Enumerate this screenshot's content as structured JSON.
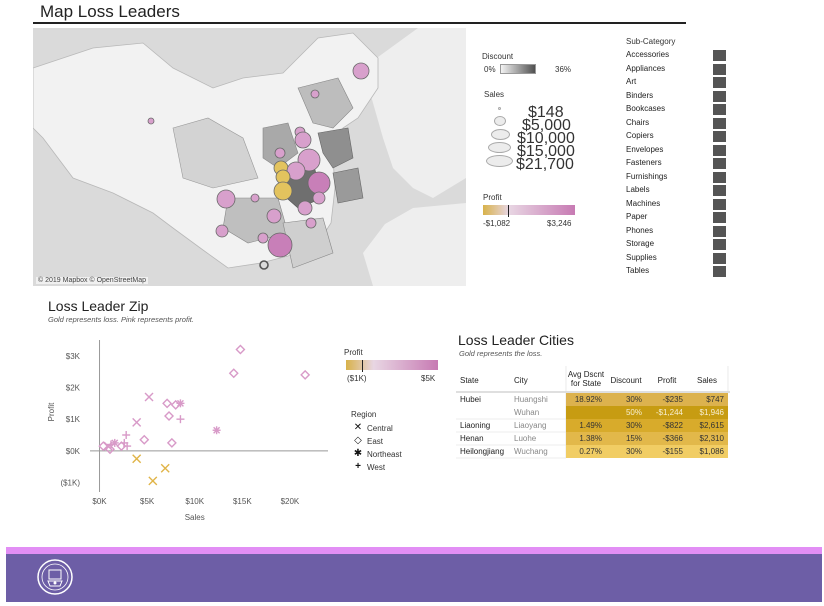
{
  "title": "Map Loss Leaders",
  "map": {
    "credit": "© 2019 Mapbox © OpenStreetMap"
  },
  "discount_legend": {
    "title": "Discount",
    "min": "0%",
    "max": "36%"
  },
  "sales_legend": {
    "title": "Sales",
    "entries": [
      "$148",
      "$5,000",
      "$10,000",
      "$15,000",
      "$21,700"
    ]
  },
  "profit_legend": {
    "title": "Profit",
    "min": "-$1,082",
    "max": "$3,246"
  },
  "subcategory": {
    "title": "Sub-Category",
    "items": [
      "Accessories",
      "Appliances",
      "Art",
      "Binders",
      "Bookcases",
      "Chairs",
      "Copiers",
      "Envelopes",
      "Fasteners",
      "Furnishings",
      "Labels",
      "Machines",
      "Paper",
      "Phones",
      "Storage",
      "Supplies",
      "Tables"
    ]
  },
  "zip": {
    "title": "Loss Leader Zip",
    "subtitle": "Gold represents loss.  Pink represents profit."
  },
  "zip_profit_legend": {
    "title": "Profit",
    "min": "($1K)",
    "max": "$5K"
  },
  "region_legend": {
    "title": "Region",
    "items": [
      {
        "glyph": "✕",
        "label": "Central"
      },
      {
        "glyph": "◇",
        "label": "East"
      },
      {
        "glyph": "✱",
        "label": "Northeast"
      },
      {
        "glyph": "+",
        "label": "West"
      }
    ]
  },
  "chart_data": {
    "type": "scatter",
    "title": "Loss Leader Zip",
    "xlabel": "Sales",
    "ylabel": "Profit",
    "xlim": [
      -1000,
      24000
    ],
    "ylim": [
      -1300,
      3500
    ],
    "x_ticks": [
      "$0K",
      "$5K",
      "$10K",
      "$15K",
      "$20K"
    ],
    "y_ticks": [
      "($1K)",
      "$0K",
      "$1K",
      "$2K",
      "$3K"
    ],
    "colors": {
      "profit": "#d89ac8",
      "loss": "#e0b447"
    },
    "series": [
      {
        "name": "Central",
        "marker": "x",
        "points": [
          [
            3900,
            -250,
            "loss"
          ],
          [
            6900,
            -550,
            "loss"
          ],
          [
            5600,
            -950,
            "loss"
          ],
          [
            5200,
            1700,
            "profit"
          ],
          [
            3900,
            900,
            "profit"
          ],
          [
            900,
            150,
            "profit"
          ]
        ]
      },
      {
        "name": "East",
        "marker": "diamond",
        "points": [
          [
            14800,
            3200,
            "profit"
          ],
          [
            21600,
            2400,
            "profit"
          ],
          [
            14100,
            2450,
            "profit"
          ],
          [
            7100,
            1500,
            "profit"
          ],
          [
            7300,
            1100,
            "profit"
          ],
          [
            8000,
            1450,
            "profit"
          ],
          [
            4700,
            350,
            "profit"
          ],
          [
            7600,
            250,
            "profit"
          ],
          [
            400,
            150,
            "profit"
          ],
          [
            1100,
            50,
            "profit"
          ],
          [
            2300,
            150,
            "profit"
          ]
        ]
      },
      {
        "name": "Northeast",
        "marker": "asterisk",
        "points": [
          [
            8500,
            1500,
            "profit"
          ],
          [
            12300,
            650,
            "profit"
          ],
          [
            1600,
            250,
            "profit"
          ]
        ]
      },
      {
        "name": "West",
        "marker": "plus",
        "points": [
          [
            8500,
            1000,
            "profit"
          ],
          [
            2800,
            500,
            "profit"
          ],
          [
            2600,
            250,
            "profit"
          ],
          [
            2900,
            150,
            "profit"
          ],
          [
            1200,
            200,
            "profit"
          ]
        ]
      }
    ]
  },
  "cities": {
    "title": "Loss Leader Cities",
    "subtitle": "Gold represents the  loss.",
    "headers": [
      "State",
      "City",
      "Avg Dscnt for State",
      "Discount",
      "Profit",
      "Sales"
    ],
    "rows": [
      {
        "state": "Hubei",
        "city": "Huangshi",
        "avg": "18.92%",
        "discount": "30%",
        "profit": "-$235",
        "sales": "$747"
      },
      {
        "state": "",
        "city": "Wuhan",
        "avg": "",
        "discount": "50%",
        "profit": "-$1,244",
        "sales": "$1,946"
      },
      {
        "state": "Liaoning",
        "city": "Liaoyang",
        "avg": "1.49%",
        "discount": "30%",
        "profit": "-$822",
        "sales": "$2,615"
      },
      {
        "state": "Henan",
        "city": "Luohe",
        "avg": "1.38%",
        "discount": "15%",
        "profit": "-$366",
        "sales": "$2,310"
      },
      {
        "state": "Heilongjiang",
        "city": "Wuchang",
        "avg": "0.27%",
        "discount": "30%",
        "profit": "-$155",
        "sales": "$1,086"
      }
    ]
  }
}
